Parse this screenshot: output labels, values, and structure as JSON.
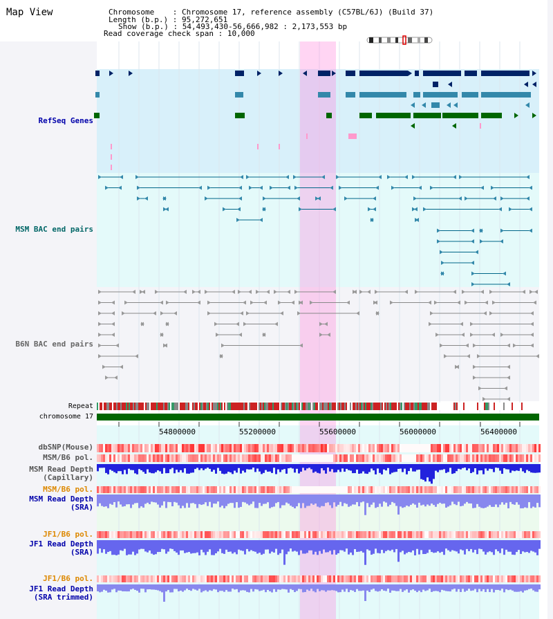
{
  "header": {
    "title": "Map View",
    "chromosome_key": "Chromosome",
    "chromosome_value": "Chromosome 17, reference assembly (C57BL/6J) (Build 37)",
    "length_key": "Length (b.p.)",
    "length_value": "95,272,651",
    "show_key": "Show (b.p.)",
    "show_value": "54,493,430-56,666,982 : 2,173,553 bp",
    "span_key": "Read coverage check span",
    "span_value": "10,000"
  },
  "tracks": {
    "refseq": "RefSeq Genes",
    "msm_bac": "MSM BAC end pairs",
    "b6n_bac": "B6N BAC end pairs",
    "repeat": "Repeat",
    "chromosome": "chromosome 17",
    "dbsnp": "dbSNP(Mouse)",
    "msm_b6_pol": "MSM/B6 pol.",
    "msm_depth_cap_1": "MSM Read Depth",
    "msm_depth_cap_2": "(Capillary)",
    "msm_b6_pol_2": "MSM/B6 pol.",
    "msm_depth_sra_1": "MSM Read Depth",
    "msm_depth_sra_2": "(SRA)",
    "jf1_pol": "JF1/B6 pol.",
    "jf1_depth_sra_1": "JF1 Read Depth",
    "jf1_depth_sra_2": "(SRA)",
    "jf1_pol_2": "JF1/B6 pol.",
    "jf1_depth_trim_1": "JF1 Read Depth",
    "jf1_depth_trim_2": "(SRA trimmed)"
  },
  "axis": {
    "ticks": [
      "54800000",
      "55200000",
      "55600000",
      "56000000",
      "56400000"
    ]
  },
  "colors": {
    "refseq_label": "#0000aa",
    "msm_label": "#006666",
    "b6n_label": "#666666",
    "orange_label": "#dd8800",
    "blue_label": "#0000aa",
    "highlight": "#ff88dd",
    "gene_dark": "#002266",
    "gene_mid": "#3388aa",
    "gene_green": "#006600"
  }
}
